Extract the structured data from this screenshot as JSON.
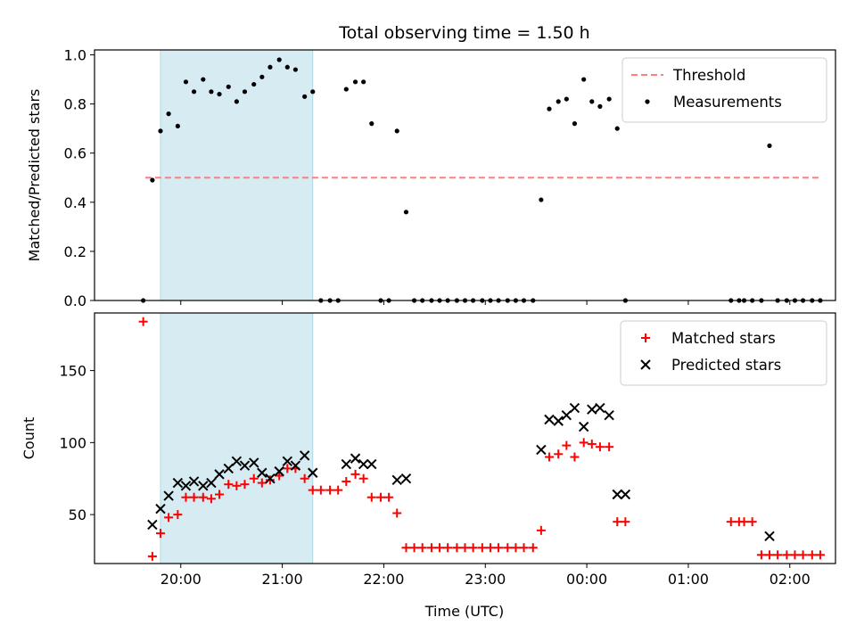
{
  "figure_title": "Total observing time = 1.50 h",
  "x_axis_label": "Time (UTC)",
  "x_tick_labels": [
    "20:00",
    "21:00",
    "22:00",
    "23:00",
    "00:00",
    "01:00",
    "02:00"
  ],
  "highlight_span_hours": [
    19.8,
    21.3
  ],
  "chart_data": [
    {
      "type": "scatter",
      "ylabel": "Matched/Predicted stars",
      "xlim": [
        19.15,
        26.45
      ],
      "ylim": [
        0.0,
        1.02
      ],
      "x_unit": "hours since 00:00 UTC of first night (24:00 = 00:00)",
      "yticks": [
        0.0,
        0.2,
        0.4,
        0.6,
        0.8,
        1.0
      ],
      "ytick_labels": [
        "0.0",
        "0.2",
        "0.4",
        "0.6",
        "0.8",
        "1.0"
      ],
      "threshold": {
        "name": "Threshold",
        "y": 0.5,
        "x_range": [
          19.65,
          26.3
        ],
        "color": "#ff7f7f",
        "style": "dashed"
      },
      "legend_position": "top-right",
      "series": [
        {
          "name": "Measurements",
          "color": "#000000",
          "marker": "dot",
          "x": [
            19.63,
            19.72,
            19.8,
            19.88,
            19.97,
            20.05,
            20.13,
            20.22,
            20.3,
            20.38,
            20.47,
            20.55,
            20.63,
            20.72,
            20.8,
            20.88,
            20.97,
            21.05,
            21.13,
            21.22,
            21.3,
            21.38,
            21.47,
            21.55,
            21.63,
            21.72,
            21.8,
            21.88,
            21.97,
            22.05,
            22.13,
            22.22,
            22.3,
            22.38,
            22.47,
            22.55,
            22.63,
            22.72,
            22.8,
            22.88,
            22.97,
            23.05,
            23.13,
            23.22,
            23.3,
            23.38,
            23.47,
            23.55,
            23.63,
            23.72,
            23.8,
            23.88,
            23.97,
            24.05,
            24.13,
            24.22,
            24.3,
            24.38,
            25.42,
            25.5,
            25.55,
            25.63,
            25.72,
            25.8,
            25.88,
            25.97,
            26.05,
            26.13,
            26.22,
            26.3
          ],
          "y": [
            0.0,
            0.49,
            0.69,
            0.76,
            0.71,
            0.89,
            0.85,
            0.9,
            0.85,
            0.84,
            0.87,
            0.81,
            0.85,
            0.88,
            0.91,
            0.95,
            0.98,
            0.95,
            0.94,
            0.83,
            0.85,
            0.0,
            0.0,
            0.0,
            0.86,
            0.89,
            0.89,
            0.72,
            0.0,
            0.0,
            0.69,
            0.36,
            0.0,
            0.0,
            0.0,
            0.0,
            0.0,
            0.0,
            0.0,
            0.0,
            0.0,
            0.0,
            0.0,
            0.0,
            0.0,
            0.0,
            0.0,
            0.41,
            0.78,
            0.81,
            0.82,
            0.72,
            0.9,
            0.81,
            0.79,
            0.82,
            0.7,
            0.0,
            0.0,
            0.0,
            0.0,
            0.0,
            0.0,
            0.63,
            0.0,
            0.0,
            0.0,
            0.0,
            0.0,
            0.0
          ]
        }
      ]
    },
    {
      "type": "scatter",
      "ylabel": "Count",
      "xlabel": "Time (UTC)",
      "xlim": [
        19.15,
        26.45
      ],
      "ylim": [
        16,
        190
      ],
      "yticks": [
        50,
        100,
        150
      ],
      "ytick_labels": [
        "50",
        "100",
        "150"
      ],
      "legend_position": "top-right",
      "series": [
        {
          "name": "Matched stars",
          "color": "#ff0000",
          "marker": "plus",
          "x": [
            19.63,
            19.72,
            19.8,
            19.88,
            19.97,
            20.05,
            20.13,
            20.22,
            20.3,
            20.38,
            20.47,
            20.55,
            20.63,
            20.72,
            20.8,
            20.88,
            20.97,
            21.05,
            21.13,
            21.22,
            21.3,
            21.38,
            21.47,
            21.55,
            21.63,
            21.72,
            21.8,
            21.88,
            21.97,
            22.05,
            22.13,
            22.22,
            22.3,
            22.38,
            22.47,
            22.55,
            22.63,
            22.72,
            22.8,
            22.88,
            22.97,
            23.05,
            23.13,
            23.22,
            23.3,
            23.38,
            23.47,
            23.55,
            23.63,
            23.72,
            23.8,
            23.88,
            23.97,
            24.05,
            24.13,
            24.22,
            24.3,
            24.38,
            25.42,
            25.5,
            25.55,
            25.63,
            25.72,
            25.8,
            25.88,
            25.97,
            26.05,
            26.13,
            26.22,
            26.3
          ],
          "y": [
            184,
            21,
            37,
            48,
            50,
            62,
            62,
            62,
            61,
            64,
            71,
            70,
            71,
            75,
            72,
            74,
            77,
            82,
            82,
            75,
            67,
            67,
            67,
            67,
            73,
            78,
            75,
            62,
            62,
            62,
            51,
            27,
            27,
            27,
            27,
            27,
            27,
            27,
            27,
            27,
            27,
            27,
            27,
            27,
            27,
            27,
            27,
            39,
            90,
            92,
            98,
            90,
            100,
            99,
            97,
            97,
            45,
            45,
            45,
            45,
            45,
            45,
            22,
            22,
            22,
            22,
            22,
            22,
            22,
            22
          ]
        },
        {
          "name": "Predicted stars",
          "color": "#000000",
          "marker": "cross",
          "x": [
            19.72,
            19.8,
            19.88,
            19.97,
            20.05,
            20.13,
            20.22,
            20.3,
            20.38,
            20.47,
            20.55,
            20.63,
            20.72,
            20.8,
            20.88,
            20.97,
            21.05,
            21.13,
            21.22,
            21.3,
            21.63,
            21.72,
            21.8,
            21.88,
            22.13,
            22.22,
            23.55,
            23.63,
            23.72,
            23.8,
            23.88,
            23.97,
            24.05,
            24.13,
            24.22,
            24.3,
            24.38,
            25.8
          ],
          "y": [
            43,
            54,
            63,
            72,
            70,
            73,
            70,
            72,
            78,
            82,
            87,
            84,
            86,
            79,
            75,
            80,
            87,
            84,
            91,
            79,
            85,
            89,
            85,
            85,
            74,
            75,
            95,
            116,
            115,
            119,
            124,
            111,
            123,
            124,
            119,
            64,
            64,
            35
          ]
        }
      ]
    }
  ]
}
